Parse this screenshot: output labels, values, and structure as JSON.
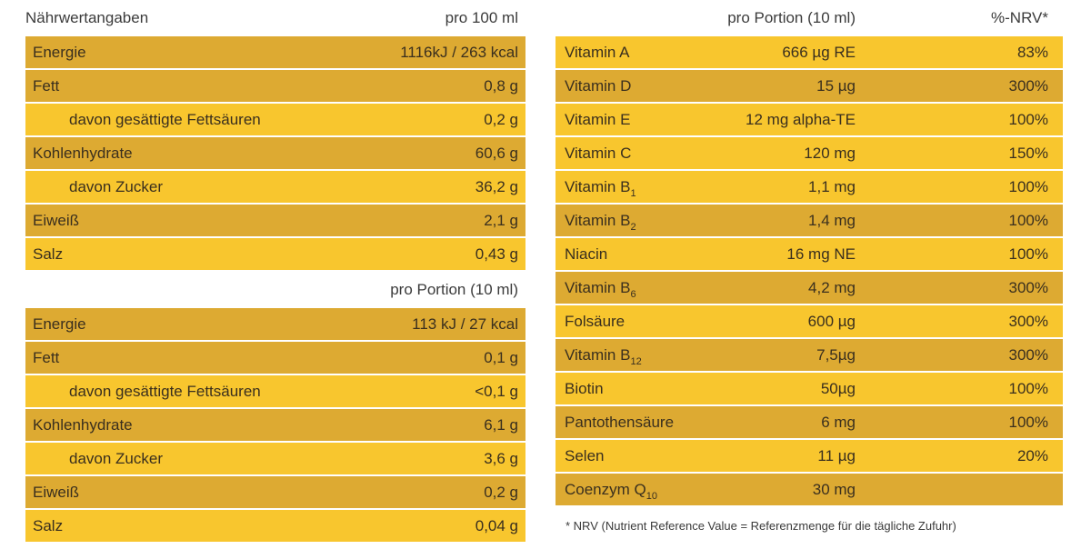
{
  "per100": {
    "title": "Nährwertangaben",
    "col": "pro 100 ml",
    "rows": [
      {
        "label": "Energie",
        "value": "1116kJ / 263 kcal"
      },
      {
        "label": "Fett",
        "value": "0,8 g"
      },
      {
        "label": "davon gesättigte Fettsäuren",
        "value": "0,2 g"
      },
      {
        "label": "Kohlenhydrate",
        "value": "60,6 g"
      },
      {
        "label": "davon Zucker",
        "value": "36,2 g"
      },
      {
        "label": "Eiweiß",
        "value": "2,1 g"
      },
      {
        "label": "Salz",
        "value": "0,43 g"
      }
    ]
  },
  "perPortion": {
    "col": "pro Portion (10 ml)",
    "rows": [
      {
        "label": "Energie",
        "value": "113 kJ / 27 kcal"
      },
      {
        "label": "Fett",
        "value": "0,1 g"
      },
      {
        "label": "davon gesättigte Fettsäuren",
        "value": "<0,1 g"
      },
      {
        "label": "Kohlenhydrate",
        "value": "6,1 g"
      },
      {
        "label": "davon Zucker",
        "value": "3,6 g"
      },
      {
        "label": "Eiweiß",
        "value": "0,2 g"
      },
      {
        "label": "Salz",
        "value": "0,04 g"
      }
    ]
  },
  "vitamins": {
    "col_portion": "pro Portion (10 ml)",
    "col_nrv": "%-NRV*",
    "rows": [
      {
        "label": "Vitamin A",
        "sub": "",
        "value": "666 µg RE",
        "nrv": "83%"
      },
      {
        "label": "Vitamin D",
        "sub": "",
        "value": "15 µg",
        "nrv": "300%"
      },
      {
        "label": "Vitamin E",
        "sub": "",
        "value": "12 mg alpha-TE",
        "nrv": "100%"
      },
      {
        "label": "Vitamin C",
        "sub": "",
        "value": "120 mg",
        "nrv": "150%"
      },
      {
        "label": "Vitamin B",
        "sub": "1",
        "value": "1,1 mg",
        "nrv": "100%"
      },
      {
        "label": "Vitamin B",
        "sub": "2",
        "value": "1,4 mg",
        "nrv": "100%"
      },
      {
        "label": "Niacin",
        "sub": "",
        "value": "16 mg NE",
        "nrv": "100%"
      },
      {
        "label": "Vitamin B",
        "sub": "6",
        "value": "4,2 mg",
        "nrv": "300%"
      },
      {
        "label": "Folsäure",
        "sub": "",
        "value": "600 µg",
        "nrv": "300%"
      },
      {
        "label": "Vitamin B",
        "sub": "12",
        "value": "7,5µg",
        "nrv": "300%"
      },
      {
        "label": "Biotin",
        "sub": "",
        "value": "50µg",
        "nrv": "100%"
      },
      {
        "label": "Pantothensäure",
        "sub": "",
        "value": "6 mg",
        "nrv": "100%"
      },
      {
        "label": "Selen",
        "sub": "",
        "value": "11 µg",
        "nrv": "20%"
      },
      {
        "label": "Coenzym Q",
        "sub": "10",
        "value": "30 mg",
        "nrv": ""
      }
    ]
  },
  "footnote": "* NRV (Nutrient Reference Value = Referenzmenge für die tägliche Zufuhr)",
  "colors": {
    "dark": "#ddaa32",
    "light": "#f8c62e"
  }
}
